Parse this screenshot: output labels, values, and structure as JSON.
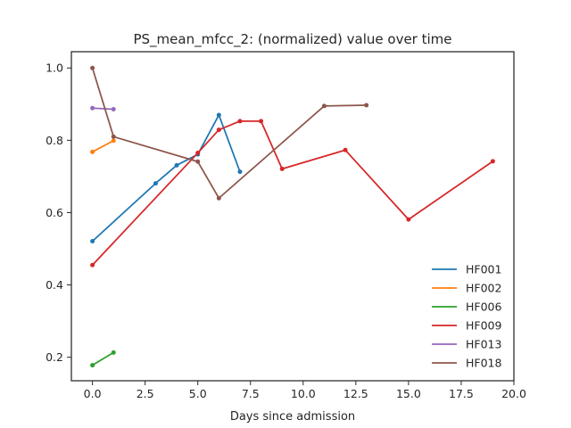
{
  "chart_data": {
    "type": "line",
    "title": "PS_mean_mfcc_2: (normalized) value over time",
    "xlabel": "Days since admission",
    "ylabel": "",
    "xlim": [
      -1,
      20
    ],
    "ylim": [
      0.135,
      1.045
    ],
    "xticks": [
      0.0,
      2.5,
      5.0,
      7.5,
      10.0,
      12.5,
      15.0,
      17.5,
      20.0
    ],
    "xtick_labels": [
      "0.0",
      "2.5",
      "5.0",
      "7.5",
      "10.0",
      "12.5",
      "15.0",
      "17.5",
      "20.0"
    ],
    "yticks": [
      0.2,
      0.4,
      0.6,
      0.8,
      1.0
    ],
    "ytick_labels": [
      "0.2",
      "0.4",
      "0.6",
      "0.8",
      "1.0"
    ],
    "grid": false,
    "legend_position": "bottom-right",
    "series": [
      {
        "name": "HF001",
        "color": "#1f77b4",
        "x": [
          0,
          3,
          4,
          5,
          6,
          7
        ],
        "y": [
          0.521,
          0.681,
          0.731,
          0.761,
          0.87,
          0.713
        ]
      },
      {
        "name": "HF002",
        "color": "#ff7f0e",
        "x": [
          0,
          1
        ],
        "y": [
          0.768,
          0.799
        ]
      },
      {
        "name": "HF006",
        "color": "#2ca02c",
        "x": [
          0,
          1
        ],
        "y": [
          0.178,
          0.213
        ]
      },
      {
        "name": "HF009",
        "color": "#d62728",
        "x": [
          0,
          5,
          6,
          7,
          8,
          9,
          12,
          15,
          19
        ],
        "y": [
          0.455,
          0.765,
          0.829,
          0.853,
          0.853,
          0.721,
          0.773,
          0.581,
          0.742
        ]
      },
      {
        "name": "HF013",
        "color": "#9467bd",
        "x": [
          0,
          1
        ],
        "y": [
          0.889,
          0.886
        ]
      },
      {
        "name": "HF018",
        "color": "#8c564b",
        "x": [
          0,
          1,
          5,
          6,
          11,
          13
        ],
        "y": [
          1.0,
          0.81,
          0.741,
          0.64,
          0.895,
          0.897
        ]
      }
    ]
  }
}
